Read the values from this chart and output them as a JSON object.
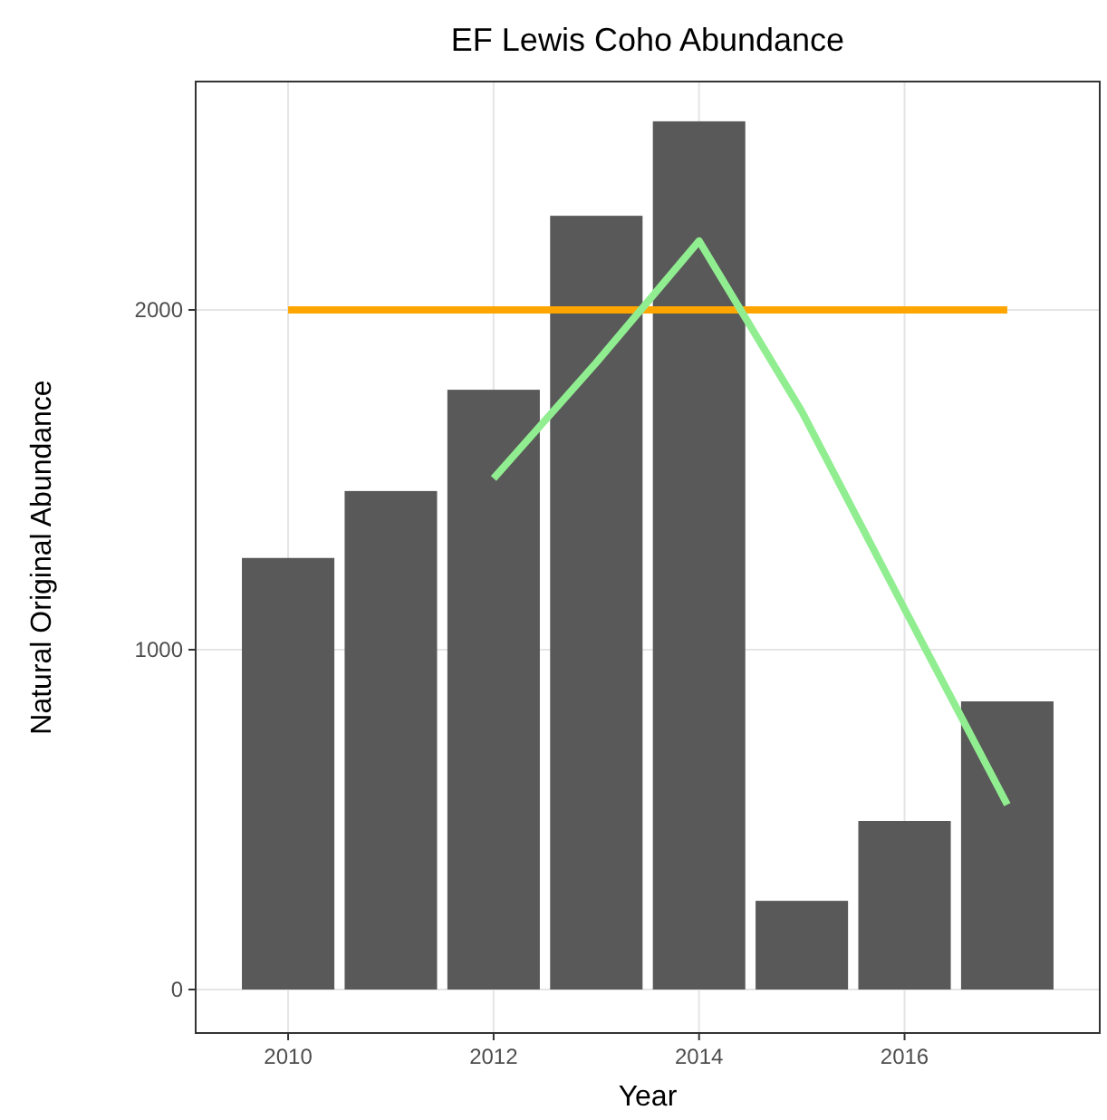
{
  "chart_data": {
    "type": "bar",
    "title": "EF Lewis Coho Abundance",
    "xlabel": "Year",
    "ylabel": "Natural Original Abundance",
    "x": [
      2010,
      2011,
      2012,
      2013,
      2014,
      2015,
      2016,
      2017
    ],
    "series": [
      {
        "color": "#595959",
        "values": [
          1270,
          1467,
          1765,
          2277,
          2555,
          261,
          496,
          848
        ]
      },
      {
        "type": "line",
        "color": "#ffa500",
        "x": [
          2010,
          2017
        ],
        "values": [
          2000,
          2000
        ]
      },
      {
        "type": "line",
        "color": "#90ee90",
        "x": [
          2012,
          2013,
          2014,
          2015,
          2016,
          2017
        ],
        "values": [
          1504,
          1845,
          2203,
          1701,
          1120,
          544
        ]
      }
    ],
    "xlim": [
      2009.1,
      2017.9
    ],
    "xticks": [
      2010,
      2012,
      2014,
      2016
    ],
    "ylim": [
      -128,
      2672
    ],
    "yticks": [
      0,
      1000,
      2000
    ],
    "grid": true,
    "line_style": "solid",
    "marker": "none"
  }
}
